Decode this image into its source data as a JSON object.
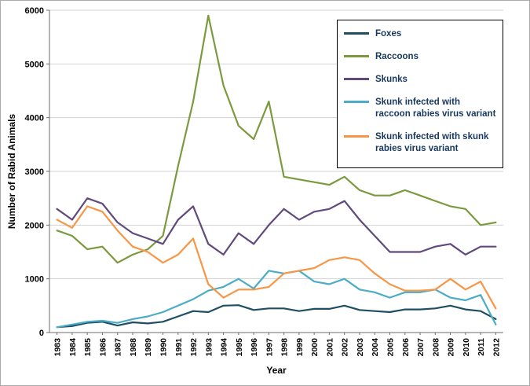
{
  "chart_data": {
    "type": "line",
    "title": "",
    "xlabel": "Year",
    "ylabel": "Number of Rabid Animals",
    "ylim": [
      0,
      6000
    ],
    "yticks": [
      0,
      1000,
      2000,
      3000,
      4000,
      5000,
      6000
    ],
    "grid": true,
    "legend_position": "top-right",
    "x": [
      1983,
      1984,
      1985,
      1986,
      1987,
      1988,
      1989,
      1990,
      1991,
      1992,
      1993,
      1994,
      1995,
      1996,
      1997,
      1998,
      1999,
      2000,
      2001,
      2002,
      2003,
      2004,
      2005,
      2006,
      2007,
      2008,
      2009,
      2010,
      2011,
      2012
    ],
    "series": [
      {
        "name": "Foxes",
        "color": "#1f4e63",
        "values": [
          100,
          120,
          180,
          200,
          130,
          190,
          170,
          200,
          300,
          400,
          380,
          500,
          510,
          420,
          450,
          450,
          400,
          440,
          440,
          500,
          420,
          400,
          380,
          430,
          430,
          450,
          500,
          430,
          400,
          250
        ]
      },
      {
        "name": "Raccoons",
        "color": "#7a9a3d",
        "values": [
          1900,
          1800,
          1550,
          1600,
          1300,
          1450,
          1550,
          1800,
          3100,
          4300,
          5900,
          4600,
          3850,
          3600,
          4300,
          2900,
          2850,
          2800,
          2750,
          2900,
          2650,
          2550,
          2550,
          2650,
          2550,
          2450,
          2350,
          2300,
          2000,
          2050
        ]
      },
      {
        "name": "Skunks",
        "color": "#604a7b",
        "values": [
          2300,
          2100,
          2500,
          2400,
          2050,
          1850,
          1750,
          1650,
          2100,
          2350,
          1650,
          1450,
          1850,
          1650,
          2000,
          2300,
          2100,
          2250,
          2300,
          2450,
          2100,
          1800,
          1500,
          1500,
          1500,
          1600,
          1650,
          1450,
          1600,
          1600
        ]
      },
      {
        "name": "Skunk infected with raccoon rabies virus variant",
        "color": "#4bacc6",
        "values": [
          100,
          150,
          200,
          220,
          180,
          250,
          300,
          380,
          500,
          620,
          780,
          850,
          1000,
          820,
          1150,
          1100,
          1150,
          950,
          900,
          1000,
          800,
          750,
          650,
          750,
          750,
          800,
          650,
          600,
          700,
          150
        ]
      },
      {
        "name": "Skunk infected with skunk rabies virus variant",
        "color": "#f79646",
        "values": [
          2100,
          1950,
          2350,
          2250,
          1900,
          1600,
          1500,
          1300,
          1450,
          1750,
          900,
          650,
          800,
          800,
          850,
          1100,
          1150,
          1200,
          1350,
          1400,
          1350,
          1100,
          900,
          780,
          780,
          800,
          1000,
          800,
          950,
          450
        ]
      }
    ]
  }
}
